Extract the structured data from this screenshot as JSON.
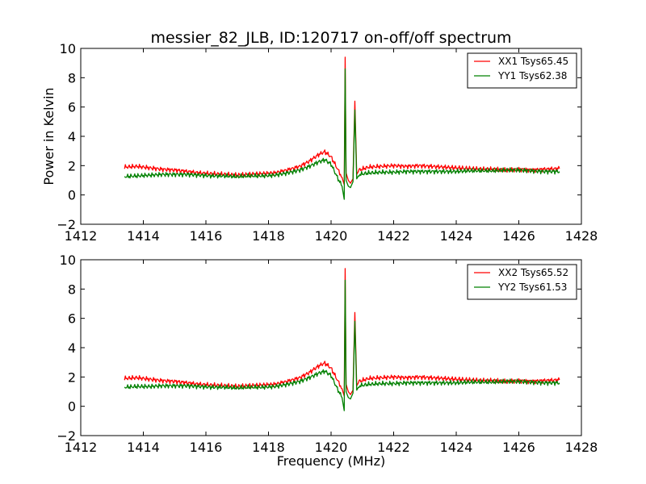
{
  "chart_data": [
    {
      "type": "line",
      "title": "messier_82_JLB, ID:120717 on-off/off spectrum",
      "xlabel": "",
      "ylabel": "Power in Kelvin",
      "xlim": [
        1412,
        1428
      ],
      "ylim": [
        -2,
        10
      ],
      "xticks": [
        "1412",
        "1414",
        "1416",
        "1418",
        "1420",
        "1422",
        "1424",
        "1426",
        "1428"
      ],
      "yticks": [
        "−2",
        "0",
        "2",
        "4",
        "6",
        "8",
        "10"
      ],
      "grid": false,
      "legend": "top-right",
      "series": [
        {
          "name": "XX1 Tsys65.45",
          "color": "#ff0000",
          "points": [
            [
              1413.4,
              1.9
            ],
            [
              1413.8,
              1.95
            ],
            [
              1414.2,
              1.85
            ],
            [
              1414.6,
              1.75
            ],
            [
              1415.0,
              1.7
            ],
            [
              1415.4,
              1.6
            ],
            [
              1415.8,
              1.5
            ],
            [
              1416.2,
              1.45
            ],
            [
              1416.6,
              1.4
            ],
            [
              1417.0,
              1.35
            ],
            [
              1417.4,
              1.4
            ],
            [
              1417.8,
              1.45
            ],
            [
              1418.2,
              1.5
            ],
            [
              1418.6,
              1.7
            ],
            [
              1419.0,
              1.95
            ],
            [
              1419.3,
              2.3
            ],
            [
              1419.6,
              2.75
            ],
            [
              1419.8,
              2.95
            ],
            [
              1420.0,
              2.6
            ],
            [
              1420.2,
              1.8
            ],
            [
              1420.35,
              1.2
            ],
            [
              1420.42,
              0.7
            ],
            [
              1420.45,
              9.4
            ],
            [
              1420.48,
              1.5
            ],
            [
              1420.55,
              1.0
            ],
            [
              1420.62,
              0.8
            ],
            [
              1420.7,
              1.1
            ],
            [
              1420.76,
              6.4
            ],
            [
              1420.82,
              1.4
            ],
            [
              1420.9,
              1.7
            ],
            [
              1421.2,
              1.9
            ],
            [
              1421.6,
              1.95
            ],
            [
              1422.0,
              2.0
            ],
            [
              1422.4,
              1.95
            ],
            [
              1422.8,
              2.0
            ],
            [
              1423.2,
              1.95
            ],
            [
              1423.6,
              1.9
            ],
            [
              1424.0,
              1.85
            ],
            [
              1424.4,
              1.8
            ],
            [
              1424.8,
              1.75
            ],
            [
              1425.2,
              1.75
            ],
            [
              1425.6,
              1.7
            ],
            [
              1426.0,
              1.75
            ],
            [
              1426.4,
              1.7
            ],
            [
              1426.8,
              1.75
            ],
            [
              1427.3,
              1.8
            ]
          ]
        },
        {
          "name": "YY1 Tsys62.38",
          "color": "#008000",
          "points": [
            [
              1413.4,
              1.25
            ],
            [
              1413.8,
              1.3
            ],
            [
              1414.2,
              1.35
            ],
            [
              1414.6,
              1.4
            ],
            [
              1415.0,
              1.4
            ],
            [
              1415.4,
              1.4
            ],
            [
              1415.8,
              1.35
            ],
            [
              1416.2,
              1.3
            ],
            [
              1416.6,
              1.3
            ],
            [
              1417.0,
              1.25
            ],
            [
              1417.4,
              1.3
            ],
            [
              1417.8,
              1.3
            ],
            [
              1418.2,
              1.35
            ],
            [
              1418.6,
              1.5
            ],
            [
              1419.0,
              1.7
            ],
            [
              1419.3,
              1.95
            ],
            [
              1419.6,
              2.25
            ],
            [
              1419.8,
              2.4
            ],
            [
              1420.0,
              2.1
            ],
            [
              1420.2,
              1.2
            ],
            [
              1420.35,
              0.6
            ],
            [
              1420.42,
              -0.3
            ],
            [
              1420.45,
              8.6
            ],
            [
              1420.48,
              1.0
            ],
            [
              1420.55,
              0.6
            ],
            [
              1420.62,
              0.5
            ],
            [
              1420.7,
              0.9
            ],
            [
              1420.76,
              5.8
            ],
            [
              1420.82,
              1.1
            ],
            [
              1420.9,
              1.4
            ],
            [
              1421.2,
              1.5
            ],
            [
              1421.6,
              1.55
            ],
            [
              1422.0,
              1.55
            ],
            [
              1422.4,
              1.6
            ],
            [
              1422.8,
              1.6
            ],
            [
              1423.2,
              1.6
            ],
            [
              1423.6,
              1.6
            ],
            [
              1424.0,
              1.6
            ],
            [
              1424.4,
              1.65
            ],
            [
              1424.8,
              1.65
            ],
            [
              1425.2,
              1.65
            ],
            [
              1425.6,
              1.7
            ],
            [
              1426.0,
              1.7
            ],
            [
              1426.4,
              1.65
            ],
            [
              1426.8,
              1.6
            ],
            [
              1427.3,
              1.6
            ]
          ]
        }
      ]
    },
    {
      "type": "line",
      "title": "",
      "xlabel": "Frequency (MHz)",
      "ylabel": "",
      "xlim": [
        1412,
        1428
      ],
      "ylim": [
        -2,
        10
      ],
      "xticks": [
        "1412",
        "1414",
        "1416",
        "1418",
        "1420",
        "1422",
        "1424",
        "1426",
        "1428"
      ],
      "yticks": [
        "−2",
        "0",
        "2",
        "4",
        "6",
        "8",
        "10"
      ],
      "grid": false,
      "legend": "top-right",
      "series": [
        {
          "name": "XX2 Tsys65.52",
          "color": "#ff0000",
          "points": [
            [
              1413.4,
              1.9
            ],
            [
              1413.8,
              1.95
            ],
            [
              1414.2,
              1.85
            ],
            [
              1414.6,
              1.75
            ],
            [
              1415.0,
              1.7
            ],
            [
              1415.4,
              1.6
            ],
            [
              1415.8,
              1.5
            ],
            [
              1416.2,
              1.45
            ],
            [
              1416.6,
              1.4
            ],
            [
              1417.0,
              1.35
            ],
            [
              1417.4,
              1.4
            ],
            [
              1417.8,
              1.45
            ],
            [
              1418.2,
              1.5
            ],
            [
              1418.6,
              1.7
            ],
            [
              1419.0,
              1.95
            ],
            [
              1419.3,
              2.3
            ],
            [
              1419.6,
              2.75
            ],
            [
              1419.8,
              2.95
            ],
            [
              1420.0,
              2.6
            ],
            [
              1420.2,
              1.8
            ],
            [
              1420.35,
              1.2
            ],
            [
              1420.42,
              0.7
            ],
            [
              1420.45,
              9.4
            ],
            [
              1420.48,
              1.5
            ],
            [
              1420.55,
              1.0
            ],
            [
              1420.62,
              0.8
            ],
            [
              1420.7,
              1.1
            ],
            [
              1420.76,
              6.4
            ],
            [
              1420.82,
              1.4
            ],
            [
              1420.9,
              1.7
            ],
            [
              1421.2,
              1.9
            ],
            [
              1421.6,
              1.95
            ],
            [
              1422.0,
              2.0
            ],
            [
              1422.4,
              1.95
            ],
            [
              1422.8,
              2.0
            ],
            [
              1423.2,
              1.95
            ],
            [
              1423.6,
              1.9
            ],
            [
              1424.0,
              1.85
            ],
            [
              1424.4,
              1.8
            ],
            [
              1424.8,
              1.75
            ],
            [
              1425.2,
              1.75
            ],
            [
              1425.6,
              1.7
            ],
            [
              1426.0,
              1.75
            ],
            [
              1426.4,
              1.7
            ],
            [
              1426.8,
              1.75
            ],
            [
              1427.3,
              1.8
            ]
          ]
        },
        {
          "name": "YY2 Tsys61.53",
          "color": "#008000",
          "points": [
            [
              1413.4,
              1.3
            ],
            [
              1413.8,
              1.35
            ],
            [
              1414.2,
              1.35
            ],
            [
              1414.6,
              1.4
            ],
            [
              1415.0,
              1.4
            ],
            [
              1415.4,
              1.4
            ],
            [
              1415.8,
              1.35
            ],
            [
              1416.2,
              1.3
            ],
            [
              1416.6,
              1.3
            ],
            [
              1417.0,
              1.25
            ],
            [
              1417.4,
              1.3
            ],
            [
              1417.8,
              1.3
            ],
            [
              1418.2,
              1.35
            ],
            [
              1418.6,
              1.5
            ],
            [
              1419.0,
              1.7
            ],
            [
              1419.3,
              1.95
            ],
            [
              1419.6,
              2.25
            ],
            [
              1419.8,
              2.4
            ],
            [
              1420.0,
              2.1
            ],
            [
              1420.2,
              1.2
            ],
            [
              1420.35,
              0.6
            ],
            [
              1420.42,
              -0.3
            ],
            [
              1420.45,
              8.6
            ],
            [
              1420.48,
              1.0
            ],
            [
              1420.55,
              0.6
            ],
            [
              1420.62,
              0.5
            ],
            [
              1420.7,
              0.9
            ],
            [
              1420.76,
              5.8
            ],
            [
              1420.82,
              1.1
            ],
            [
              1420.9,
              1.4
            ],
            [
              1421.2,
              1.5
            ],
            [
              1421.6,
              1.55
            ],
            [
              1422.0,
              1.55
            ],
            [
              1422.4,
              1.6
            ],
            [
              1422.8,
              1.6
            ],
            [
              1423.2,
              1.6
            ],
            [
              1423.6,
              1.6
            ],
            [
              1424.0,
              1.6
            ],
            [
              1424.4,
              1.65
            ],
            [
              1424.8,
              1.65
            ],
            [
              1425.2,
              1.65
            ],
            [
              1425.6,
              1.7
            ],
            [
              1426.0,
              1.7
            ],
            [
              1426.4,
              1.65
            ],
            [
              1426.8,
              1.6
            ],
            [
              1427.3,
              1.6
            ]
          ]
        }
      ]
    }
  ]
}
